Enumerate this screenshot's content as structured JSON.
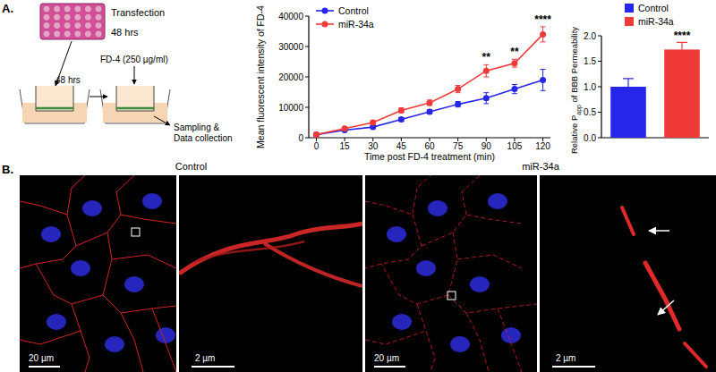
{
  "panel_labels": [
    "A.",
    "B."
  ],
  "schematic": {
    "plate_label": "Transfection",
    "time_1": "48 hrs",
    "tracer": "FD-4 (250 µg/ml)",
    "time_2": "48 hrs",
    "readout": [
      "Sampling &",
      "Data collection"
    ]
  },
  "chart_data": [
    {
      "type": "line",
      "xlabel": "Time post FD-4 treatment (min)",
      "ylabel": "Mean fluorescent intensity of FD-4",
      "x": [
        0,
        15,
        30,
        45,
        60,
        75,
        90,
        105,
        120
      ],
      "series": [
        {
          "name": "Control",
          "color": "#2626e8",
          "marker": "circle",
          "values": [
            1000,
            2500,
            3500,
            6000,
            8500,
            11000,
            13000,
            16000,
            19000
          ],
          "errors": [
            300,
            400,
            500,
            600,
            700,
            900,
            1800,
            1500,
            3500
          ]
        },
        {
          "name": "miR-34a",
          "color": "#f03a3a",
          "marker": "circle",
          "values": [
            1000,
            3000,
            5000,
            9000,
            11500,
            16000,
            22000,
            24500,
            34000
          ],
          "errors": [
            300,
            500,
            700,
            800,
            900,
            1200,
            2000,
            1300,
            2500
          ]
        }
      ],
      "annotations": [
        {
          "x": 90,
          "label": "**"
        },
        {
          "x": 105,
          "label": "**"
        },
        {
          "x": 120,
          "label": "****"
        }
      ],
      "xlim": [
        -4,
        124
      ],
      "xticks": [
        0,
        15,
        30,
        45,
        60,
        75,
        90,
        105,
        120
      ],
      "ylim": [
        0,
        40000
      ],
      "yticks": [
        0,
        10000,
        20000,
        30000,
        40000
      ],
      "legend": "top-left",
      "grid": false
    },
    {
      "type": "bar",
      "ylabel": [
        "Relative P",
        "app",
        " of BBB Permeability"
      ],
      "categories": [
        "Control",
        "miR-34a"
      ],
      "values": [
        1.0,
        1.73
      ],
      "errors": [
        0.16,
        0.14
      ],
      "colors": [
        "#2626e8",
        "#f03a3a"
      ],
      "annotations": [
        {
          "category": "miR-34a",
          "label": "****"
        }
      ],
      "ylim": [
        0,
        2
      ],
      "yticks": [
        {
          "value": 0,
          "label": "0.0"
        },
        0.5,
        {
          "value": 1,
          "label": "1.0"
        },
        1.5,
        {
          "value": 2,
          "label": "2.0"
        }
      ],
      "legend": "top",
      "tick_labels": "y",
      "grid": false
    }
  ],
  "micrographs": [
    {
      "title": "Control",
      "scale_bars": [
        "20 µm",
        "2 µm"
      ]
    },
    {
      "title": "miR-34a",
      "scale_bars": [
        "20 µm",
        "2 µm"
      ]
    }
  ]
}
